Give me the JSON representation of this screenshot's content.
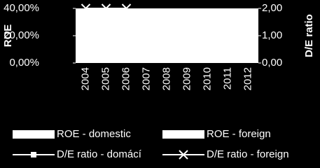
{
  "chart_data": {
    "type": "bar-line",
    "categories": [
      "2004",
      "2005",
      "2006",
      "2007",
      "2008",
      "2009",
      "2010",
      "2011",
      "2012"
    ],
    "ylabel": "ROE",
    "y2label": "D/E ratio",
    "ylim": [
      0,
      40
    ],
    "yticks": [
      {
        "value": 0,
        "label": "0,00%"
      },
      {
        "value": 20,
        "label": "20,00%"
      },
      {
        "value": 40,
        "label": "40,00%"
      }
    ],
    "y2lim": [
      0,
      2
    ],
    "y2ticks": [
      {
        "value": 0,
        "label": "0,00"
      },
      {
        "value": 1,
        "label": "1,00"
      },
      {
        "value": 2,
        "label": "2,00"
      }
    ],
    "series": [
      {
        "name": "ROE - domestic",
        "kind": "bar",
        "color": "#ffffff",
        "values": [
          null,
          null,
          null,
          null,
          null,
          null,
          null,
          null,
          null
        ]
      },
      {
        "name": "ROE - foreign",
        "kind": "bar",
        "color": "#ffffff",
        "values": [
          null,
          null,
          null,
          null,
          null,
          null,
          null,
          null,
          null
        ]
      },
      {
        "name": "D/E ratio - domácí",
        "kind": "line",
        "marker": "square",
        "axis": "y2",
        "color": "#ffffff",
        "values": [
          null,
          null,
          null,
          null,
          null,
          null,
          null,
          null,
          null
        ]
      },
      {
        "name": "D/E ratio - foreign",
        "kind": "line",
        "marker": "x",
        "axis": "y2",
        "color": "#ffffff",
        "values": [
          2,
          2,
          2,
          null,
          null,
          null,
          null,
          null,
          null
        ]
      }
    ]
  }
}
